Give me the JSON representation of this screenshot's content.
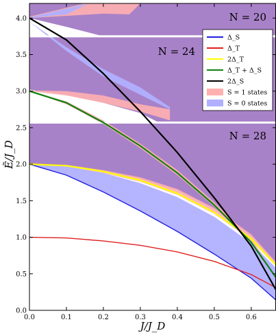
{
  "chart_data": {
    "type": "line",
    "xlabel": "J/J_D",
    "ylabel": "Ẽ/J_D",
    "xlim": [
      0.0,
      0.667
    ],
    "ylim": [
      0.0,
      4.2
    ],
    "x_ticks": [
      "0.0",
      "0.1",
      "0.2",
      "0.3",
      "0.4",
      "0.5",
      "0.6"
    ],
    "y_ticks": [
      "0.0",
      "0.5",
      "1.0",
      "1.5",
      "2.0",
      "2.5",
      "3.0",
      "3.5",
      "4.0"
    ],
    "legend_position": "top-right",
    "legend": [
      {
        "key": "delta_s",
        "label": "Δ_S",
        "color": "#2020e0",
        "kind": "line"
      },
      {
        "key": "delta_t",
        "label": "Δ_T",
        "color": "#e02020",
        "kind": "line"
      },
      {
        "key": "two_delta_t",
        "label": "2Δ_T",
        "color": "#ffff00",
        "kind": "line"
      },
      {
        "key": "dt_plus_ds",
        "label": "Δ_T + Δ_S",
        "color": "#108010",
        "kind": "line"
      },
      {
        "key": "two_delta_s",
        "label": "2Δ_S",
        "color": "#000000",
        "kind": "line"
      },
      {
        "key": "s1",
        "label": "S = 1 states",
        "color": "#ffb0b0",
        "kind": "patch"
      },
      {
        "key": "s0",
        "label": "S = 0 states",
        "color": "#b0b0ff",
        "kind": "patch"
      }
    ],
    "panels": [
      {
        "label": "N = 20",
        "y_range": [
          3.75,
          4.2
        ]
      },
      {
        "label": "N = 24",
        "y_range": [
          2.57,
          3.75
        ]
      },
      {
        "label": "N = 28",
        "y_range": [
          0.0,
          2.57
        ]
      }
    ],
    "panel_dividers_y": [
      3.75,
      2.57
    ],
    "series": [
      {
        "key": "delta_s",
        "x": [
          0.0,
          0.1,
          0.2,
          0.3,
          0.4,
          0.5,
          0.6,
          0.667
        ],
        "y": [
          2.0,
          1.85,
          1.62,
          1.36,
          1.08,
          0.77,
          0.44,
          0.14
        ]
      },
      {
        "key": "delta_t",
        "x": [
          0.0,
          0.1,
          0.2,
          0.3,
          0.4,
          0.5,
          0.6,
          0.667
        ],
        "y": [
          1.0,
          0.99,
          0.95,
          0.89,
          0.8,
          0.67,
          0.49,
          0.31
        ]
      },
      {
        "key": "two_delta_t",
        "x": [
          0.0,
          0.1,
          0.2,
          0.3,
          0.4,
          0.5,
          0.6,
          0.667
        ],
        "y": [
          2.0,
          1.98,
          1.9,
          1.78,
          1.6,
          1.34,
          0.98,
          0.62
        ]
      },
      {
        "key": "dt_plus_ds",
        "x": [
          0.0,
          0.1,
          0.2,
          0.3,
          0.4,
          0.5,
          0.6,
          0.667
        ],
        "y": [
          3.0,
          2.84,
          2.57,
          2.25,
          1.88,
          1.44,
          0.93,
          0.45
        ]
      },
      {
        "key": "two_delta_s",
        "x": [
          0.0,
          0.1,
          0.2,
          0.3,
          0.4,
          0.5,
          0.6,
          0.667
        ],
        "y": [
          4.0,
          3.7,
          3.24,
          2.72,
          2.16,
          1.54,
          0.88,
          0.28
        ]
      }
    ],
    "regions": [
      {
        "key": "s1",
        "name": "n20-s1",
        "upper": [
          [
            0.0,
            4.02
          ],
          [
            0.15,
            4.2
          ],
          [
            0.25,
            4.2
          ],
          [
            0.3,
            4.2
          ]
        ],
        "lower": [
          [
            0.0,
            4.0
          ],
          [
            0.2,
            4.06
          ],
          [
            0.27,
            4.05
          ],
          [
            0.3,
            4.2
          ]
        ]
      },
      {
        "key": "s0",
        "name": "n20-s0",
        "upper": [
          [
            0.0,
            4.01
          ],
          [
            0.16,
            4.2
          ]
        ],
        "lower": [
          [
            0.0,
            4.0
          ],
          [
            0.1,
            4.05
          ],
          [
            0.16,
            4.2
          ]
        ]
      },
      {
        "key": "s1",
        "name": "n24-s1",
        "upper": [
          [
            0.0,
            3.01
          ],
          [
            0.1,
            3.0
          ],
          [
            0.2,
            2.94
          ],
          [
            0.3,
            2.82
          ],
          [
            0.38,
            2.75
          ]
        ],
        "lower": [
          [
            0.0,
            3.0
          ],
          [
            0.1,
            2.94
          ],
          [
            0.2,
            2.84
          ],
          [
            0.3,
            2.72
          ],
          [
            0.38,
            2.6
          ]
        ]
      },
      {
        "key": "s0",
        "name": "n24-s0",
        "upper": [
          [
            0.0,
            3.95
          ],
          [
            0.1,
            3.6
          ],
          [
            0.2,
            3.3
          ],
          [
            0.3,
            3.05
          ],
          [
            0.38,
            2.78
          ]
        ],
        "lower": [
          [
            0.0,
            3.95
          ],
          [
            0.1,
            3.55
          ],
          [
            0.2,
            3.2
          ],
          [
            0.3,
            2.95
          ],
          [
            0.38,
            2.75
          ]
        ]
      },
      {
        "key": "s1",
        "name": "n28-s1-upper",
        "upper": [
          [
            0.0,
            3.0
          ],
          [
            0.1,
            2.86
          ],
          [
            0.2,
            2.6
          ],
          [
            0.3,
            2.28
          ],
          [
            0.4,
            1.92
          ],
          [
            0.5,
            1.48
          ],
          [
            0.6,
            0.98
          ],
          [
            0.667,
            0.5
          ]
        ],
        "lower": [
          [
            0.0,
            3.0
          ],
          [
            0.1,
            2.82
          ],
          [
            0.2,
            2.55
          ],
          [
            0.3,
            2.22
          ],
          [
            0.4,
            1.85
          ],
          [
            0.5,
            1.42
          ],
          [
            0.6,
            0.92
          ],
          [
            0.667,
            0.44
          ]
        ]
      },
      {
        "key": "s1",
        "name": "n28-s1-lower",
        "upper": [
          [
            0.0,
            2.01
          ],
          [
            0.1,
            1.99
          ],
          [
            0.2,
            1.92
          ],
          [
            0.3,
            1.82
          ],
          [
            0.4,
            1.66
          ],
          [
            0.5,
            1.4
          ],
          [
            0.6,
            1.04
          ],
          [
            0.667,
            0.66
          ]
        ],
        "lower": [
          [
            0.0,
            2.0
          ],
          [
            0.1,
            1.97
          ],
          [
            0.2,
            1.88
          ],
          [
            0.3,
            1.76
          ],
          [
            0.4,
            1.58
          ],
          [
            0.5,
            1.32
          ],
          [
            0.6,
            0.96
          ],
          [
            0.667,
            0.6
          ]
        ]
      },
      {
        "key": "s0",
        "name": "n28-s0",
        "upper": [
          [
            0.0,
            2.0
          ],
          [
            0.1,
            1.97
          ],
          [
            0.2,
            1.88
          ],
          [
            0.3,
            1.74
          ],
          [
            0.4,
            1.55
          ],
          [
            0.5,
            1.28
          ],
          [
            0.6,
            0.92
          ],
          [
            0.667,
            0.58
          ]
        ],
        "lower": [
          [
            0.0,
            2.0
          ],
          [
            0.1,
            1.85
          ],
          [
            0.2,
            1.62
          ],
          [
            0.3,
            1.36
          ],
          [
            0.4,
            1.08
          ],
          [
            0.5,
            0.77
          ],
          [
            0.6,
            0.44
          ],
          [
            0.667,
            0.14
          ]
        ]
      }
    ],
    "continuum_bounds": [
      {
        "name": "n20-continuum",
        "panel": "N = 20",
        "lower": [
          [
            0.0,
            4.0
          ],
          [
            0.1,
            3.88
          ],
          [
            0.2,
            3.75
          ]
        ]
      },
      {
        "name": "n24-continuum",
        "panel": "N = 24",
        "lower": [
          [
            0.0,
            3.02
          ],
          [
            0.1,
            2.95
          ],
          [
            0.2,
            2.84
          ],
          [
            0.3,
            2.7
          ],
          [
            0.35,
            2.57
          ]
        ]
      },
      {
        "name": "n28-continuum",
        "panel": "N = 28",
        "lower": [
          [
            0.0,
            2.0
          ],
          [
            0.1,
            1.98
          ],
          [
            0.2,
            1.91
          ],
          [
            0.3,
            1.8
          ],
          [
            0.4,
            1.64
          ],
          [
            0.5,
            1.38
          ],
          [
            0.6,
            1.02
          ],
          [
            0.667,
            0.64
          ]
        ]
      }
    ],
    "colors": {
      "continuum": "#a882c8",
      "divider": "#ffffff"
    }
  }
}
